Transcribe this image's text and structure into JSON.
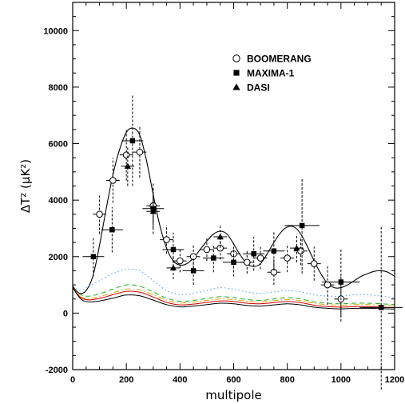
{
  "chart_data": {
    "type": "scatter",
    "xlabel": "multipole",
    "ylabel": "ΔT² (μK²)",
    "xlim": [
      0,
      1200
    ],
    "ylim": [
      -2000,
      11000
    ],
    "x_ticks": [
      0,
      200,
      400,
      600,
      800,
      1000,
      1200
    ],
    "y_ticks": [
      -2000,
      0,
      2000,
      4000,
      6000,
      8000,
      10000
    ],
    "grid": false,
    "legend_position": "top-right",
    "series": [
      {
        "name": "BOOMERANG",
        "marker": "open-circle",
        "points": [
          {
            "x": 100,
            "y": 3500,
            "xerr": 25,
            "yerr": 700
          },
          {
            "x": 150,
            "y": 4700,
            "xerr": 25,
            "yerr": 800
          },
          {
            "x": 200,
            "y": 5600,
            "xerr": 25,
            "yerr": 900
          },
          {
            "x": 250,
            "y": 5700,
            "xerr": 25,
            "yerr": 900
          },
          {
            "x": 300,
            "y": 3800,
            "xerr": 25,
            "yerr": 600
          },
          {
            "x": 350,
            "y": 2600,
            "xerr": 25,
            "yerr": 500
          },
          {
            "x": 400,
            "y": 1850,
            "xerr": 25,
            "yerr": 400
          },
          {
            "x": 450,
            "y": 2000,
            "xerr": 25,
            "yerr": 400
          },
          {
            "x": 500,
            "y": 2250,
            "xerr": 25,
            "yerr": 400
          },
          {
            "x": 550,
            "y": 2300,
            "xerr": 25,
            "yerr": 400
          },
          {
            "x": 600,
            "y": 2100,
            "xerr": 25,
            "yerr": 400
          },
          {
            "x": 650,
            "y": 1800,
            "xerr": 25,
            "yerr": 400
          },
          {
            "x": 700,
            "y": 1950,
            "xerr": 25,
            "yerr": 400
          },
          {
            "x": 750,
            "y": 1450,
            "xerr": 25,
            "yerr": 450
          },
          {
            "x": 800,
            "y": 1950,
            "xerr": 25,
            "yerr": 500
          },
          {
            "x": 850,
            "y": 2200,
            "xerr": 25,
            "yerr": 500
          },
          {
            "x": 900,
            "y": 1750,
            "xerr": 25,
            "yerr": 600
          },
          {
            "x": 950,
            "y": 1000,
            "xerr": 25,
            "yerr": 700
          },
          {
            "x": 1000,
            "y": 500,
            "xerr": 25,
            "yerr": 800
          }
        ]
      },
      {
        "name": "MAXIMA-1",
        "marker": "filled-square",
        "points": [
          {
            "x": 77,
            "y": 2000,
            "xerr": 40,
            "yerr": 700
          },
          {
            "x": 147,
            "y": 2950,
            "xerr": 40,
            "yerr": 800
          },
          {
            "x": 223,
            "y": 6100,
            "xerr": 40,
            "yerr": 1600
          },
          {
            "x": 300,
            "y": 3700,
            "xerr": 40,
            "yerr": 900
          },
          {
            "x": 375,
            "y": 2250,
            "xerr": 40,
            "yerr": 600
          },
          {
            "x": 450,
            "y": 1500,
            "xerr": 40,
            "yerr": 500
          },
          {
            "x": 525,
            "y": 1950,
            "xerr": 40,
            "yerr": 500
          },
          {
            "x": 600,
            "y": 1800,
            "xerr": 40,
            "yerr": 500
          },
          {
            "x": 675,
            "y": 2100,
            "xerr": 40,
            "yerr": 600
          },
          {
            "x": 750,
            "y": 2200,
            "xerr": 40,
            "yerr": 700
          },
          {
            "x": 855,
            "y": 3100,
            "xerr": 65,
            "yerr": 1700
          },
          {
            "x": 1000,
            "y": 1100,
            "xerr": 70,
            "yerr": 1200
          },
          {
            "x": 1150,
            "y": 200,
            "xerr": 80,
            "yerr": 2900
          }
        ]
      },
      {
        "name": "DASI",
        "marker": "filled-triangle",
        "points": [
          {
            "x": 205,
            "y": 5200,
            "xerr": 25,
            "yerr": 700
          },
          {
            "x": 300,
            "y": 3600,
            "xerr": 25,
            "yerr": 600
          },
          {
            "x": 375,
            "y": 1600,
            "xerr": 25,
            "yerr": 400
          },
          {
            "x": 550,
            "y": 2700,
            "xerr": 25,
            "yerr": 400
          },
          {
            "x": 835,
            "y": 2300,
            "xerr": 25,
            "yerr": 500
          }
        ]
      }
    ],
    "curves": [
      {
        "style": "solid",
        "color": "#000000",
        "x": [
          0,
          25,
          50,
          75,
          100,
          125,
          150,
          175,
          200,
          225,
          250,
          275,
          300,
          325,
          350,
          375,
          400,
          425,
          450,
          475,
          500,
          525,
          550,
          575,
          600,
          625,
          650,
          675,
          700,
          725,
          750,
          775,
          800,
          825,
          850,
          875,
          900,
          925,
          950,
          975,
          1000,
          1025,
          1050,
          1075,
          1100,
          1125,
          1150,
          1175,
          1200
        ],
        "y": [
          950,
          700,
          800,
          1300,
          2400,
          3700,
          4900,
          5800,
          6400,
          6550,
          6300,
          5400,
          4200,
          3100,
          2300,
          1850,
          1700,
          1750,
          1950,
          2250,
          2550,
          2800,
          2900,
          2800,
          2450,
          2050,
          1750,
          1650,
          1750,
          2100,
          2500,
          2850,
          3050,
          3050,
          2800,
          2350,
          1850,
          1400,
          1050,
          900,
          900,
          1000,
          1150,
          1300,
          1400,
          1480,
          1500,
          1450,
          1300
        ]
      },
      {
        "style": "dotted",
        "color": "#5a9adf",
        "x": [
          0,
          30,
          60,
          100,
          150,
          200,
          250,
          300,
          350,
          400,
          450,
          500,
          550,
          600,
          650,
          700,
          750,
          800,
          850,
          900,
          950,
          1000,
          1050,
          1100,
          1150,
          1200
        ],
        "y": [
          900,
          800,
          950,
          1150,
          1400,
          1550,
          1500,
          1150,
          800,
          650,
          700,
          800,
          900,
          850,
          750,
          700,
          750,
          800,
          750,
          650,
          600,
          600,
          650,
          650,
          600,
          550
        ]
      },
      {
        "style": "dashed",
        "color": "#22aa22",
        "x": [
          0,
          30,
          60,
          100,
          150,
          200,
          250,
          300,
          350,
          400,
          450,
          500,
          550,
          600,
          650,
          700,
          750,
          800,
          850,
          900,
          950,
          1000,
          1050,
          1100,
          1150,
          1200
        ],
        "y": [
          900,
          650,
          600,
          680,
          850,
          1000,
          950,
          750,
          530,
          420,
          450,
          520,
          580,
          550,
          480,
          450,
          500,
          550,
          500,
          400,
          350,
          330,
          350,
          350,
          330,
          300
        ]
      },
      {
        "style": "dash-dot",
        "color": "#e0a000",
        "x": [
          0,
          30,
          60,
          100,
          150,
          200,
          250,
          300,
          350,
          400,
          450,
          500,
          550,
          600,
          650,
          700,
          750,
          800,
          850,
          900,
          950,
          1000,
          1050,
          1100,
          1150,
          1200
        ],
        "y": [
          900,
          580,
          520,
          580,
          720,
          850,
          820,
          650,
          460,
          360,
          390,
          450,
          500,
          480,
          420,
          400,
          440,
          480,
          440,
          350,
          300,
          280,
          300,
          300,
          280,
          250
        ]
      },
      {
        "style": "solid",
        "color": "#cc0000",
        "x": [
          0,
          30,
          60,
          100,
          150,
          200,
          250,
          300,
          350,
          400,
          450,
          500,
          550,
          600,
          650,
          700,
          750,
          800,
          850,
          900,
          950,
          1000,
          1050,
          1100,
          1150,
          1200
        ],
        "y": [
          900,
          550,
          470,
          520,
          650,
          770,
          740,
          570,
          380,
          290,
          320,
          380,
          430,
          410,
          350,
          330,
          370,
          410,
          370,
          280,
          230,
          210,
          230,
          230,
          210,
          190
        ]
      },
      {
        "style": "solid",
        "color": "#000000",
        "x": [
          0,
          30,
          60,
          100,
          150,
          200,
          250,
          300,
          350,
          400,
          450,
          500,
          550,
          600,
          650,
          700,
          750,
          800,
          850,
          900,
          950,
          1000,
          1050,
          1100,
          1150,
          1200
        ],
        "y": [
          900,
          500,
          400,
          430,
          530,
          640,
          610,
          460,
          300,
          220,
          250,
          300,
          350,
          330,
          270,
          250,
          290,
          330,
          290,
          210,
          170,
          150,
          170,
          170,
          160,
          140
        ]
      }
    ]
  }
}
